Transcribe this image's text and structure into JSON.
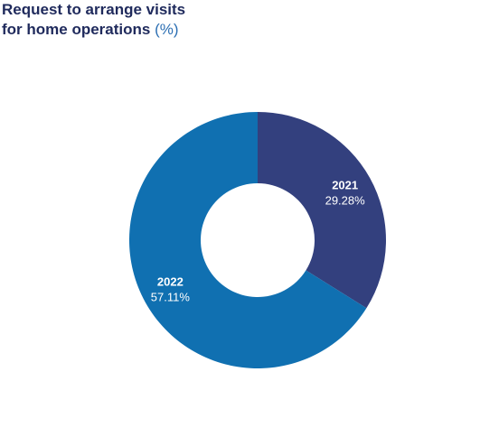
{
  "title": {
    "line1": "Request to arrange visits",
    "line2": "for home operations",
    "unit": "(%)"
  },
  "chart_data": {
    "type": "pie",
    "title": "Request to arrange visits for home operations (%)",
    "slices": [
      {
        "label": "2021",
        "value": 29.28,
        "value_label": "29.28%",
        "color": "#33407e"
      },
      {
        "label": "2022",
        "value": 57.11,
        "value_label": "57.11%",
        "color": "#1070b1"
      }
    ]
  }
}
